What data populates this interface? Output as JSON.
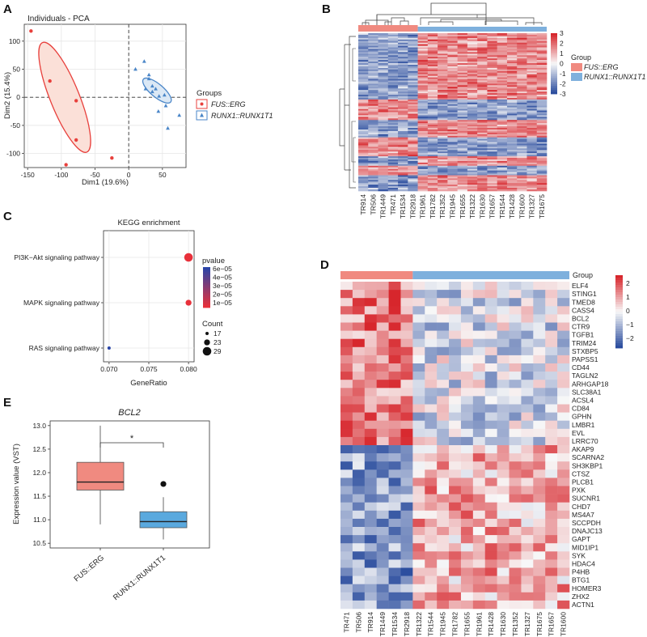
{
  "panels": {
    "A": "A",
    "B": "B",
    "C": "C",
    "D": "D",
    "E": "E"
  },
  "colors": {
    "fus": "#e8403c",
    "runx": "#4a86c8",
    "fusPale": "#f08a80",
    "runxPale": "#7eb0dd",
    "heatRed": "#d7262c",
    "heatBlue": "#2b4d9e"
  },
  "chart_data": [
    {
      "id": "A",
      "type": "scatter",
      "title": "Individuals - PCA",
      "xlabel": "Dim1 (19.6%)",
      "ylabel": "Dim2 (15.4%)",
      "xlim": [
        -155,
        85
      ],
      "ylim": [
        -125,
        130
      ],
      "xticks": [
        -150,
        -100,
        -50,
        0,
        50
      ],
      "yticks": [
        -100,
        -50,
        0,
        50,
        100
      ],
      "legend": {
        "title": "Groups",
        "entries": [
          "FUS::ERG",
          "RUNX1::RUNX1T1"
        ]
      },
      "series": [
        {
          "name": "FUS::ERG",
          "points": [
            [
              -145,
              118
            ],
            [
              -117,
              29
            ],
            [
              -78,
              -6
            ],
            [
              -78,
              -76
            ],
            [
              -93,
              -120
            ],
            [
              -25,
              -108
            ]
          ]
        },
        {
          "name": "RUNX1::RUNX1T1",
          "points": [
            [
              23,
              64
            ],
            [
              30,
              33
            ],
            [
              10,
              50
            ],
            [
              25,
              15
            ],
            [
              30,
              40
            ],
            [
              35,
              10
            ],
            [
              45,
              2
            ],
            [
              55,
              -15
            ],
            [
              53,
              4
            ],
            [
              75,
              -32
            ],
            [
              58,
              -55
            ],
            [
              44,
              -25
            ],
            [
              35,
              20
            ],
            [
              40,
              15
            ]
          ]
        }
      ]
    },
    {
      "id": "B",
      "type": "heatmap",
      "samples": [
        "TR914",
        "TR506",
        "TR1449",
        "TR471",
        "TR1534",
        "TR2918",
        "TR1961",
        "TR1782",
        "TR1352",
        "TR1945",
        "TR1655",
        "TR1322",
        "TR1630",
        "TR1657",
        "TR1544",
        "TR1428",
        "TR1600",
        "TR1327",
        "TR1675"
      ],
      "colorbar": {
        "ticks": [
          "3",
          "2",
          "1",
          "0",
          "-1",
          "-2",
          "-3"
        ]
      },
      "legend": {
        "title": "Group",
        "entries": [
          "FUS::ERG",
          "RUNX1::RUNX1T1"
        ]
      }
    },
    {
      "id": "C",
      "type": "scatter",
      "title": "KEGG enrichment",
      "xlabel": "GeneRatio",
      "xticks": [
        "0.070",
        "0.075",
        "0.080"
      ],
      "pathways": [
        "PI3K−Akt signaling pathway",
        "MAPK signaling pathway",
        "RAS signaling pathway"
      ],
      "points": [
        {
          "pathway": "PI3K−Akt signaling pathway",
          "generatio": 0.08,
          "count": 29,
          "pvalue": 1e-05
        },
        {
          "pathway": "MAPK signaling pathway",
          "generatio": 0.08,
          "count": 23,
          "pvalue": 1e-05
        },
        {
          "pathway": "RAS signaling pathway",
          "generatio": 0.07,
          "count": 17,
          "pvalue": 6e-05
        }
      ],
      "pvalue_legend": {
        "title": "pvalue",
        "ticks": [
          "6e−05",
          "4e−05",
          "3e−05",
          "2e−05",
          "1e−05"
        ]
      },
      "count_legend": {
        "title": "Count",
        "values": [
          "17",
          "23",
          "29"
        ]
      }
    },
    {
      "id": "D",
      "type": "heatmap",
      "samples": [
        "TR471",
        "TR506",
        "TR914",
        "TR1449",
        "TR1534",
        "TR2918",
        "TR1322",
        "TR1544",
        "TR1945",
        "TR1782",
        "TR1655",
        "TR1961",
        "TR1428",
        "TR1630",
        "TR1352",
        "TR1327",
        "TR1675",
        "TR1657",
        "TR1600"
      ],
      "genes": [
        "ELF4",
        "STING1",
        "TMED8",
        "CASS4",
        "BCL2",
        "CTR9",
        "TGFB1",
        "TRIM24",
        "STXBP5",
        "PAPSS1",
        "CD44",
        "TAGLN2",
        "ARHGAP18",
        "SLC38A1",
        "ACSL4",
        "CD84",
        "GPHN",
        "LMBR1",
        "EVL",
        "LRRC70",
        "AKAP9",
        "SCARNA2",
        "SH3KBP1",
        "CTSZ",
        "PLCB1",
        "PXK",
        "SUCNR1",
        "CHD7",
        "MS4A7",
        "SCCPDH",
        "DNAJC13",
        "GAPT",
        "MID1IP1",
        "SYK",
        "HDAC4",
        "P4HB",
        "BTG1",
        "HOMER3",
        "ZHX2",
        "ACTN1"
      ],
      "group_label": "Group",
      "colorbar": {
        "ticks": [
          "2",
          "1",
          "0",
          "−1",
          "−2"
        ]
      }
    },
    {
      "id": "E",
      "type": "box",
      "title": "BCL2",
      "ylabel": "Expression value (VST)",
      "categories": [
        "FUS::ERG",
        "RUNX1::RUNX1T1"
      ],
      "ylim": [
        10.4,
        13.1
      ],
      "yticks": [
        "13.0",
        "12.5",
        "12.0",
        "11.5",
        "11.0",
        "10.5"
      ],
      "boxes": [
        {
          "name": "FUS::ERG",
          "min": 10.9,
          "q1": 11.63,
          "median": 11.8,
          "q3": 12.22,
          "max": 13.0
        },
        {
          "name": "RUNX1::RUNX1T1",
          "min": 10.58,
          "q1": 10.83,
          "median": 10.96,
          "q3": 11.17,
          "max": 11.48,
          "outliers": [
            11.76
          ]
        }
      ],
      "significance": "*"
    }
  ]
}
